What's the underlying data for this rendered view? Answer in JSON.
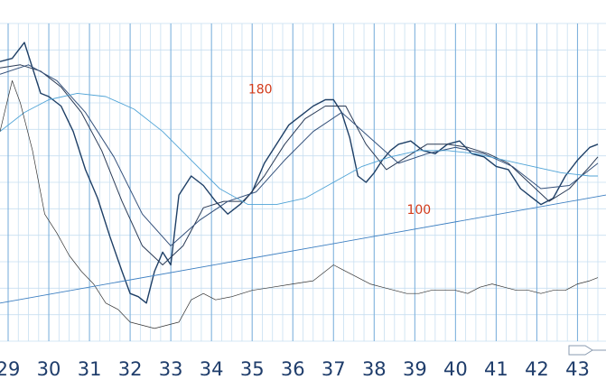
{
  "chart_data": {
    "type": "line",
    "title": "",
    "xlabel": "",
    "ylabel": "",
    "x_ticks": [
      "29",
      "30",
      "31",
      "32",
      "33",
      "34",
      "35",
      "36",
      "37",
      "38",
      "39",
      "40",
      "41",
      "42",
      "43"
    ],
    "xlim": [
      28.8,
      43.7
    ],
    "ylim": [
      0,
      100
    ],
    "grid": true,
    "annotations": [
      {
        "text": "180",
        "x": 35.2,
        "y": 78
      },
      {
        "text": "100",
        "x": 39.1,
        "y": 40
      }
    ],
    "series": [
      {
        "role": "price",
        "color": "#1e3f66",
        "x": [
          28.8,
          29.1,
          29.4,
          29.6,
          29.8,
          30.0,
          30.3,
          30.6,
          30.9,
          31.2,
          31.5,
          31.8,
          32.0,
          32.2,
          32.4,
          32.6,
          32.8,
          33.0,
          33.2,
          33.5,
          33.8,
          34.1,
          34.4,
          34.7,
          35.0,
          35.3,
          35.6,
          35.9,
          36.2,
          36.5,
          36.8,
          37.0,
          37.2,
          37.4,
          37.6,
          37.8,
          38.0,
          38.2,
          38.4,
          38.6,
          38.9,
          39.2,
          39.5,
          39.8,
          40.1,
          40.4,
          40.7,
          41.0,
          41.3,
          41.6,
          41.9,
          42.1,
          42.4,
          42.7,
          43.0,
          43.3,
          43.5
        ],
        "y": [
          88,
          89,
          94,
          86,
          78,
          77,
          74,
          66,
          54,
          45,
          33,
          22,
          15,
          14,
          12,
          22,
          28,
          24,
          46,
          52,
          49,
          44,
          40,
          43,
          47,
          56,
          62,
          68,
          71,
          74,
          76,
          76,
          72,
          64,
          52,
          50,
          53,
          57,
          60,
          62,
          63,
          60,
          59,
          62,
          63,
          59,
          58,
          55,
          54,
          48,
          45,
          43,
          45,
          52,
          57,
          61,
          62
        ]
      },
      {
        "role": "moving-average-fast",
        "color": "#2a3a55",
        "x": [
          28.8,
          29.3,
          29.8,
          30.3,
          30.8,
          31.3,
          31.8,
          32.3,
          32.8,
          33.3,
          33.8,
          34.3,
          34.8,
          35.3,
          35.8,
          36.3,
          36.8,
          37.3,
          37.8,
          38.3,
          38.8,
          39.3,
          39.8,
          40.3,
          40.8,
          41.3,
          41.8,
          42.3,
          42.8,
          43.3,
          43.5
        ],
        "y": [
          86,
          87,
          85,
          80,
          72,
          60,
          44,
          30,
          24,
          30,
          42,
          44,
          44,
          52,
          62,
          70,
          74,
          74,
          62,
          54,
          58,
          62,
          62,
          61,
          59,
          56,
          50,
          44,
          48,
          55,
          58
        ]
      },
      {
        "role": "moving-average-medium",
        "color": "#34507a",
        "x": [
          28.8,
          29.5,
          30.2,
          30.9,
          31.6,
          32.3,
          33.0,
          33.7,
          34.4,
          35.1,
          35.8,
          36.5,
          37.2,
          37.9,
          38.6,
          39.3,
          40.0,
          40.7,
          41.4,
          42.1,
          42.8,
          43.5
        ],
        "y": [
          84,
          87,
          82,
          72,
          58,
          40,
          30,
          38,
          44,
          47,
          57,
          66,
          72,
          64,
          56,
          59,
          61,
          59,
          55,
          48,
          49,
          56
        ]
      },
      {
        "role": "moving-average-slow",
        "color": "#4fa3d6",
        "x": [
          28.8,
          29.4,
          30.0,
          30.7,
          31.4,
          32.1,
          32.8,
          33.5,
          34.2,
          34.9,
          35.6,
          36.3,
          37.0,
          37.7,
          38.4,
          39.1,
          39.8,
          40.5,
          41.2,
          41.9,
          42.6,
          43.3,
          43.5
        ],
        "y": [
          66,
          72,
          76,
          78,
          77,
          73,
          66,
          57,
          48,
          43,
          43,
          45,
          50,
          55,
          58,
          60,
          60,
          59,
          57,
          55,
          53,
          52,
          52
        ]
      },
      {
        "role": "indicator",
        "color": "#333333",
        "x": [
          28.8,
          29.1,
          29.3,
          29.6,
          29.9,
          30.2,
          30.5,
          30.8,
          31.1,
          31.4,
          31.7,
          32.0,
          32.3,
          32.6,
          32.9,
          33.2,
          33.5,
          33.8,
          34.1,
          34.5,
          35.0,
          35.5,
          36.0,
          36.5,
          37.0,
          37.3,
          37.6,
          37.9,
          38.2,
          38.5,
          38.8,
          39.1,
          39.4,
          39.7,
          40.0,
          40.3,
          40.6,
          40.9,
          41.2,
          41.5,
          41.8,
          42.1,
          42.4,
          42.7,
          43.0,
          43.3,
          43.5
        ],
        "y": [
          66,
          82,
          75,
          60,
          40,
          34,
          27,
          22,
          18,
          12,
          10,
          6,
          5,
          4,
          5,
          6,
          13,
          15,
          13,
          14,
          16,
          17,
          18,
          19,
          24,
          22,
          20,
          18,
          17,
          16,
          15,
          15,
          16,
          16,
          16,
          15,
          17,
          18,
          17,
          16,
          16,
          15,
          16,
          16,
          18,
          19,
          20
        ]
      },
      {
        "role": "trendline",
        "color": "#3d7fc1",
        "x": [
          28.8,
          43.7
        ],
        "y": [
          12,
          46
        ]
      }
    ]
  }
}
